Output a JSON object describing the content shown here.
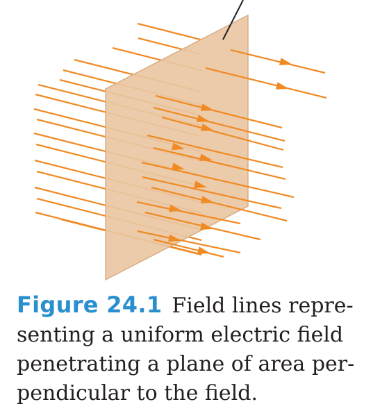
{
  "diagram": {
    "colors": {
      "field_line": "#f08a24",
      "plane_fill": "#e9c7a3",
      "plane_edge": "#d8ae86",
      "pointer": "#231f20"
    }
  },
  "caption": {
    "label": "Figure 24.1",
    "label_color": "#2a8fcf",
    "line1": "Field lines repre-",
    "line2": "senting a uniform electric field",
    "line3": "penetrating a plane of area  per-",
    "line4": "pendicular to the field."
  }
}
